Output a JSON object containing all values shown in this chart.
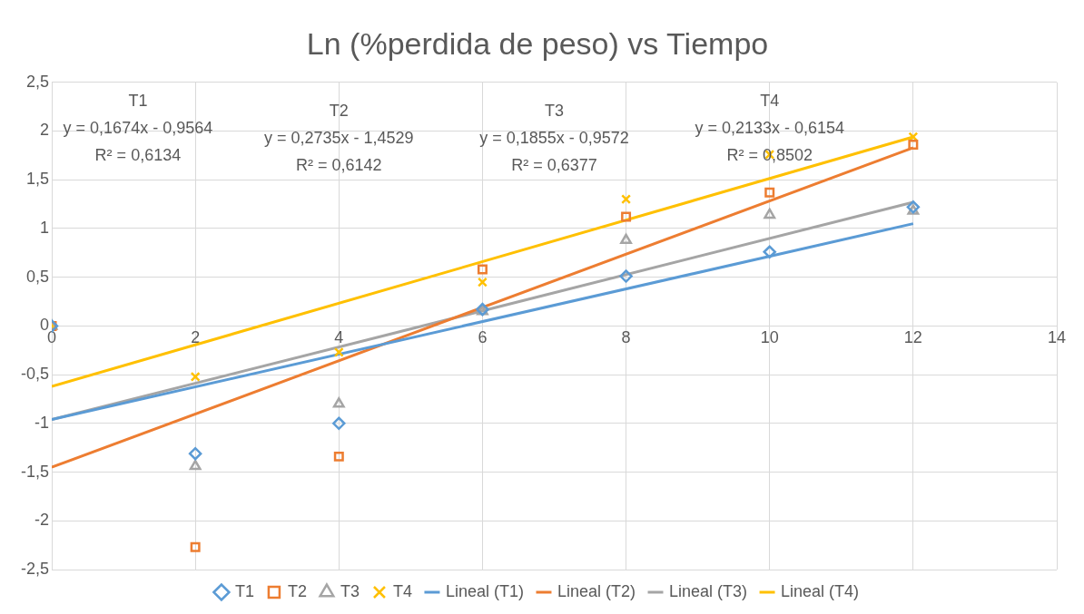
{
  "chart_data": {
    "type": "scatter",
    "title": "Ln (%perdida de peso) vs Tiempo",
    "xlim": [
      0,
      14
    ],
    "xticks": [
      0,
      2,
      4,
      6,
      8,
      10,
      12,
      14
    ],
    "ylim": [
      -2.5,
      2.5
    ],
    "yticks": [
      {
        "value": -2.5,
        "label": "-2,5"
      },
      -2,
      {
        "value": -1.5,
        "label": "-1,5"
      },
      -1,
      {
        "value": -0.5,
        "label": "-0,5"
      },
      0,
      {
        "value": 0.5,
        "label": "0,5"
      },
      1,
      {
        "value": 1.5,
        "label": "1,5"
      },
      2,
      {
        "value": 2.5,
        "label": "2,5"
      }
    ],
    "grid": true,
    "legend": "bottom",
    "annotations": [
      "T1",
      "y = 0,1674x - 0,9564",
      "R² = 0,6134",
      "T2",
      "y = 0,2735x - 1,4529",
      "R² = 0,6142",
      "T3",
      "y = 0,1855x - 0,9572",
      "R² = 0,6377",
      "T4",
      "y = 0,2133x - 0,6154",
      "R² = 0,8502"
    ],
    "series": [
      {
        "name": "T1",
        "type": "scatter",
        "marker": "diamond",
        "color": "#5b9bd5",
        "x": [
          0,
          2,
          4,
          6,
          8,
          10,
          12
        ],
        "values": [
          0,
          -1.31,
          -1.0,
          0.17,
          0.51,
          0.76,
          1.22
        ]
      },
      {
        "name": "T2",
        "type": "scatter",
        "marker": "square",
        "color": "#ed7d31",
        "x": [
          0,
          2,
          4,
          6,
          8,
          10,
          12
        ],
        "values": [
          0,
          -2.27,
          -1.34,
          0.58,
          1.12,
          1.37,
          1.86
        ]
      },
      {
        "name": "T3",
        "type": "scatter",
        "marker": "triangle",
        "color": "#a5a5a5",
        "x": [
          0,
          2,
          4,
          6,
          8,
          10,
          12
        ],
        "values": [
          0,
          -1.44,
          -0.8,
          0.15,
          0.88,
          1.14,
          1.18
        ]
      },
      {
        "name": "T4",
        "type": "scatter",
        "marker": "cross",
        "color": "#ffc000",
        "x": [
          0,
          2,
          4,
          6,
          8,
          10,
          12
        ],
        "values": [
          0,
          -0.52,
          -0.27,
          0.45,
          1.3,
          1.76,
          1.94
        ]
      },
      {
        "name": "Lineal (T1)",
        "type": "line",
        "marker": "none",
        "color": "#5b9bd5",
        "x": [
          0,
          12
        ],
        "values": [
          -0.96,
          1.05
        ]
      },
      {
        "name": "Lineal (T2)",
        "type": "line",
        "marker": "none",
        "color": "#ed7d31",
        "x": [
          0,
          12
        ],
        "values": [
          -1.45,
          1.83
        ]
      },
      {
        "name": "Lineal (T3)",
        "type": "line",
        "marker": "none",
        "color": "#a5a5a5",
        "x": [
          0,
          12
        ],
        "values": [
          -0.96,
          1.27
        ]
      },
      {
        "name": "Lineal (T4)",
        "type": "line",
        "marker": "none",
        "color": "#ffc000",
        "x": [
          0,
          12
        ],
        "values": [
          -0.62,
          1.94
        ]
      }
    ]
  }
}
